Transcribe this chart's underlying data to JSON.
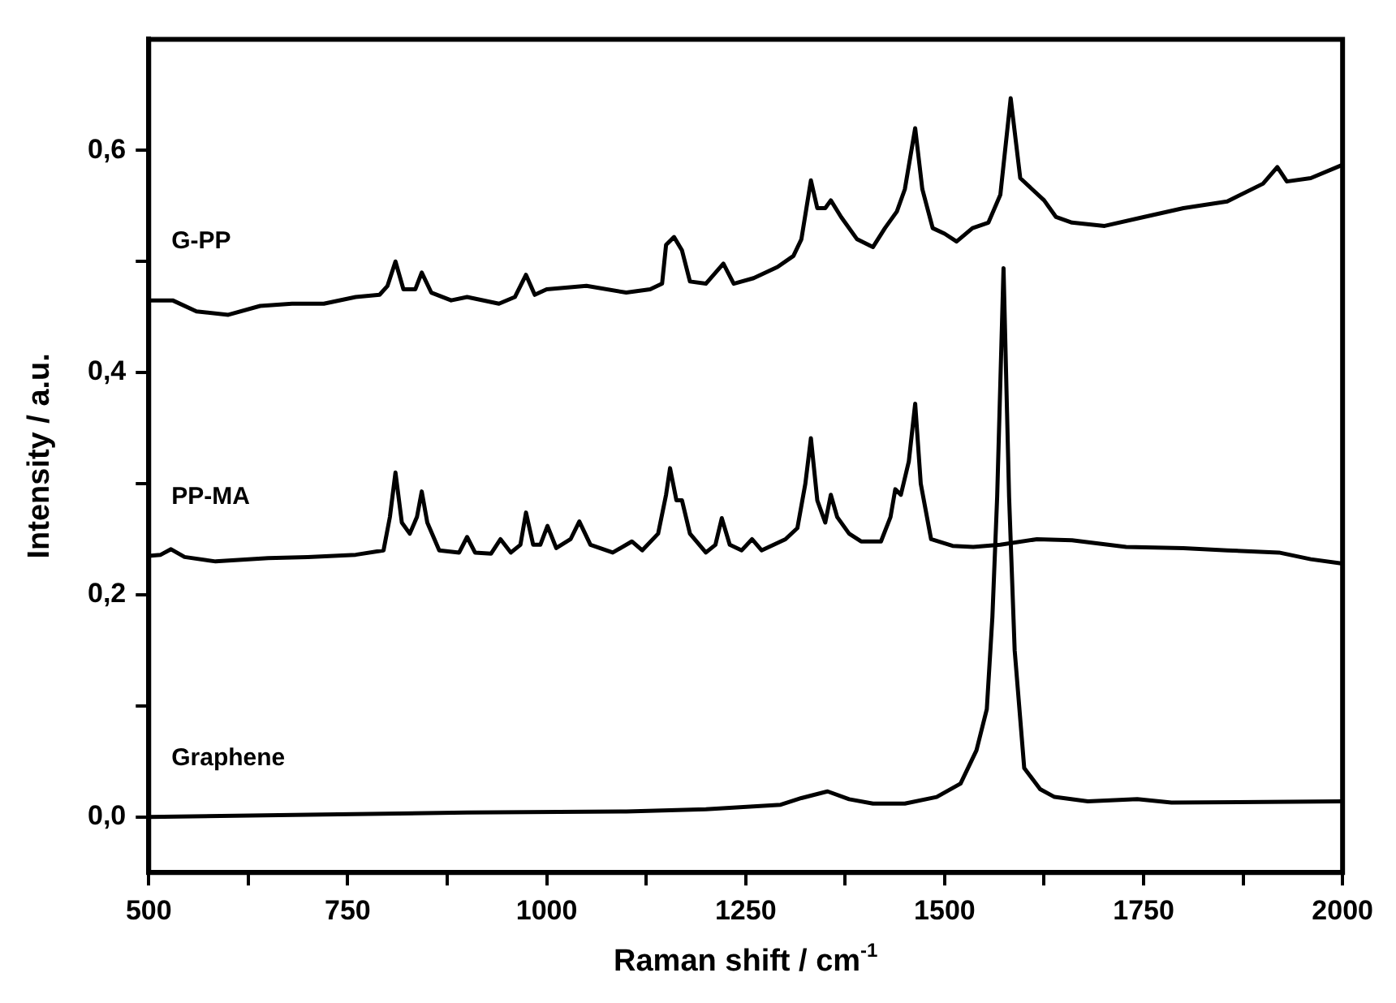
{
  "chart_data": {
    "type": "line",
    "xlabel": "Raman shift / cm$^{-1}$",
    "ylabel": "Intensity / a.u.",
    "xlim": [
      500,
      2000
    ],
    "xticks": [
      500,
      {
        "value": 625,
        "label": null
      },
      750,
      {
        "value": 875,
        "label": null
      },
      1000,
      {
        "value": 1125,
        "label": null
      },
      1250,
      {
        "value": 1375,
        "label": null
      },
      1500,
      {
        "value": 1625,
        "label": null
      },
      1750,
      {
        "value": 1875,
        "label": null
      },
      2000
    ],
    "ylim": [
      -0.05,
      0.7
    ],
    "yticks": [
      {
        "value": 0,
        "label": "0,0"
      },
      {
        "value": 0.1,
        "label": null
      },
      {
        "value": 0.2,
        "label": "0,2"
      },
      {
        "value": 0.3,
        "label": null
      },
      {
        "value": 0.4,
        "label": "0,4"
      },
      {
        "value": 0.5,
        "label": null
      },
      {
        "value": 0.6,
        "label": "0,6"
      }
    ],
    "marker": "none",
    "line_style": "solid",
    "series": [
      {
        "name": "G-PP",
        "color": "#000000",
        "x": [
          500,
          530,
          560,
          600,
          640,
          680,
          720,
          760,
          790,
          800,
          810,
          820,
          835,
          843,
          855,
          880,
          900,
          940,
          960,
          974,
          985,
          1000,
          1050,
          1100,
          1130,
          1145,
          1150,
          1160,
          1170,
          1180,
          1200,
          1222,
          1235,
          1260,
          1290,
          1310,
          1320,
          1332,
          1340,
          1350,
          1357,
          1370,
          1390,
          1410,
          1425,
          1440,
          1450,
          1463,
          1472,
          1485,
          1500,
          1515,
          1535,
          1555,
          1570,
          1583,
          1595,
          1610,
          1625,
          1640,
          1660,
          1701,
          1750,
          1800,
          1855,
          1900,
          1918,
          1930,
          1960,
          2000
        ],
        "values": [
          0.465,
          0.465,
          0.455,
          0.452,
          0.46,
          0.462,
          0.462,
          0.468,
          0.47,
          0.478,
          0.5,
          0.475,
          0.475,
          0.49,
          0.472,
          0.465,
          0.468,
          0.462,
          0.468,
          0.488,
          0.47,
          0.475,
          0.478,
          0.472,
          0.475,
          0.48,
          0.515,
          0.522,
          0.51,
          0.482,
          0.48,
          0.498,
          0.48,
          0.485,
          0.495,
          0.505,
          0.52,
          0.573,
          0.548,
          0.548,
          0.555,
          0.54,
          0.52,
          0.513,
          0.53,
          0.545,
          0.565,
          0.62,
          0.565,
          0.53,
          0.525,
          0.518,
          0.53,
          0.535,
          0.56,
          0.647,
          0.575,
          0.565,
          0.555,
          0.54,
          0.535,
          0.532,
          0.54,
          0.548,
          0.554,
          0.57,
          0.585,
          0.572,
          0.575,
          0.587
        ]
      },
      {
        "name": "PP-MA",
        "color": "#000000",
        "x": [
          500,
          515,
          528,
          545,
          584,
          650,
          700,
          760,
          795,
          803,
          810,
          818,
          828,
          837,
          843,
          850,
          865,
          890,
          900,
          910,
          930,
          942,
          955,
          967,
          974,
          983,
          992,
          1001,
          1012,
          1030,
          1041,
          1055,
          1083,
          1107,
          1120,
          1140,
          1150,
          1155,
          1163,
          1170,
          1180,
          1200,
          1212,
          1220,
          1230,
          1245,
          1258,
          1270,
          1300,
          1315,
          1325,
          1332,
          1340,
          1350,
          1357,
          1365,
          1380,
          1395,
          1420,
          1432,
          1438,
          1445,
          1455,
          1463,
          1470,
          1483,
          1510,
          1536,
          1570,
          1616,
          1660,
          1728,
          1800,
          1855,
          1920,
          1960,
          2000
        ],
        "values": [
          0.235,
          0.236,
          0.241,
          0.234,
          0.23,
          0.233,
          0.234,
          0.236,
          0.24,
          0.27,
          0.31,
          0.265,
          0.255,
          0.27,
          0.293,
          0.265,
          0.24,
          0.238,
          0.252,
          0.238,
          0.237,
          0.25,
          0.238,
          0.245,
          0.274,
          0.245,
          0.245,
          0.262,
          0.242,
          0.25,
          0.266,
          0.245,
          0.238,
          0.248,
          0.24,
          0.255,
          0.29,
          0.314,
          0.285,
          0.285,
          0.255,
          0.238,
          0.245,
          0.269,
          0.245,
          0.24,
          0.25,
          0.24,
          0.25,
          0.26,
          0.3,
          0.341,
          0.285,
          0.265,
          0.29,
          0.27,
          0.255,
          0.248,
          0.248,
          0.27,
          0.295,
          0.29,
          0.32,
          0.372,
          0.3,
          0.25,
          0.244,
          0.243,
          0.245,
          0.25,
          0.249,
          0.243,
          0.242,
          0.24,
          0.238,
          0.232,
          0.228
        ]
      },
      {
        "name": "Graphene",
        "color": "#000000",
        "x": [
          500,
          700,
          900,
          1100,
          1200,
          1294,
          1320,
          1353,
          1380,
          1410,
          1450,
          1490,
          1520,
          1540,
          1553,
          1560,
          1566,
          1574,
          1581,
          1588,
          1600,
          1620,
          1638,
          1680,
          1742,
          1785,
          2000
        ],
        "values": [
          0.0,
          0.002,
          0.004,
          0.005,
          0.007,
          0.011,
          0.017,
          0.023,
          0.016,
          0.012,
          0.012,
          0.018,
          0.03,
          0.06,
          0.097,
          0.18,
          0.288,
          0.494,
          0.288,
          0.15,
          0.044,
          0.025,
          0.018,
          0.014,
          0.016,
          0.013,
          0.014
        ]
      }
    ]
  }
}
